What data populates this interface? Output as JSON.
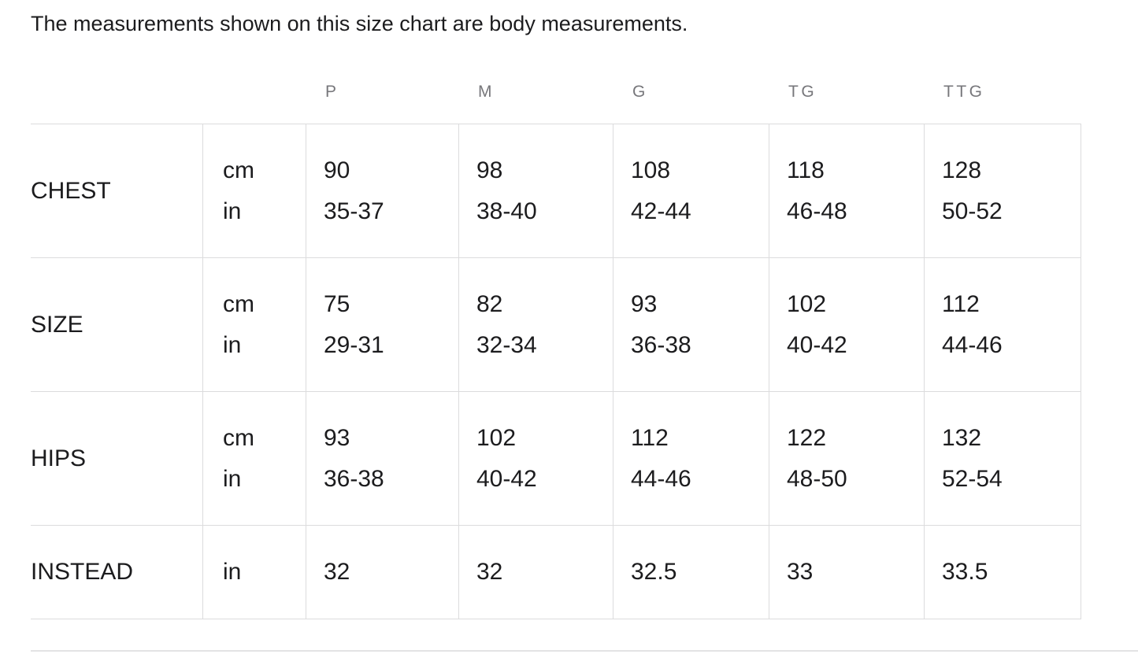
{
  "intro": "The measurements shown on this size chart are body measurements.",
  "size_chart": {
    "columns": [
      "P",
      "M",
      "G",
      "TG",
      "TTG"
    ],
    "rows": [
      {
        "label": "CHEST",
        "units": [
          "cm",
          "in"
        ],
        "cells": [
          [
            "90",
            "35-37"
          ],
          [
            "98",
            "38-40"
          ],
          [
            "108",
            "42-44"
          ],
          [
            "118",
            "46-48"
          ],
          [
            "128",
            "50-52"
          ]
        ]
      },
      {
        "label": "SIZE",
        "units": [
          "cm",
          "in"
        ],
        "cells": [
          [
            "75",
            "29-31"
          ],
          [
            "82",
            "32-34"
          ],
          [
            "93",
            "36-38"
          ],
          [
            "102",
            "40-42"
          ],
          [
            "112",
            "44-46"
          ]
        ]
      },
      {
        "label": "HIPS",
        "units": [
          "cm",
          "in"
        ],
        "cells": [
          [
            "93",
            "36-38"
          ],
          [
            "102",
            "40-42"
          ],
          [
            "112",
            "44-46"
          ],
          [
            "122",
            "48-50"
          ],
          [
            "132",
            "52-54"
          ]
        ]
      },
      {
        "label": "INSTEAD",
        "units": [
          "in"
        ],
        "cells": [
          [
            "32"
          ],
          [
            "32"
          ],
          [
            "32.5"
          ],
          [
            "33"
          ],
          [
            "33.5"
          ]
        ]
      }
    ]
  },
  "colors": {
    "text": "#1c1c1e",
    "header_text": "#77777b",
    "border": "#dcdcdd",
    "divider": "#e3e3e4",
    "background": "#ffffff"
  }
}
